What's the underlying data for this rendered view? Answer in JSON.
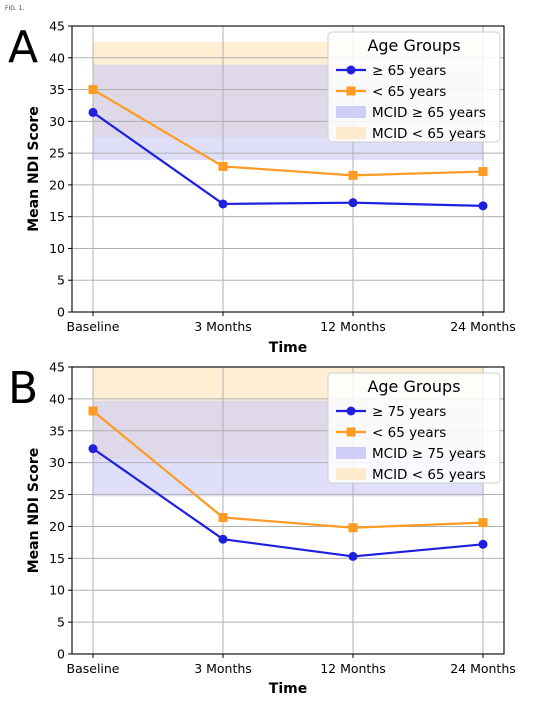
{
  "figure_label": "FIG. 1.",
  "colors": {
    "blue": "#1f1fe0",
    "orange": "#ff9a22",
    "mcid_blue": "#c9c9f7",
    "mcid_orange": "#fdebcc",
    "grid": "#b0b0b0"
  },
  "chart_data": [
    {
      "panel_label": "A",
      "type": "line",
      "categories": [
        "Baseline",
        "3 Months",
        "12 Months",
        "24 Months"
      ],
      "xlabel": "Time",
      "ylabel": "Mean NDI Score",
      "ylim": [
        0,
        45
      ],
      "yticks": [
        0,
        5,
        10,
        15,
        20,
        25,
        30,
        35,
        40,
        45
      ],
      "grid": true,
      "series": [
        {
          "name": "≥ 65 years",
          "values": [
            31.4,
            17.0,
            17.2,
            16.7
          ],
          "color": "#1f1fe0",
          "marker": "circle"
        },
        {
          "name": "< 65 years",
          "values": [
            35.0,
            22.9,
            21.5,
            22.1
          ],
          "color": "#ff9a22",
          "marker": "square"
        }
      ],
      "bands": [
        {
          "name": "MCID ≥ 65 years",
          "range": [
            23.9,
            38.9
          ],
          "color": "#c9c9f7"
        },
        {
          "name": "MCID < 65 years",
          "range": [
            27.5,
            42.5
          ],
          "color": "#fdebcc"
        }
      ],
      "legend": {
        "title": "Age Groups",
        "position": "upper-right"
      }
    },
    {
      "panel_label": "B",
      "type": "line",
      "categories": [
        "Baseline",
        "3 Months",
        "12 Months",
        "24 Months"
      ],
      "xlabel": "Time",
      "ylabel": "Mean NDI Score",
      "ylim": [
        0,
        45
      ],
      "yticks": [
        0,
        5,
        10,
        15,
        20,
        25,
        30,
        35,
        40,
        45
      ],
      "grid": true,
      "series": [
        {
          "name": "≥ 75 years",
          "values": [
            32.2,
            18.0,
            15.3,
            17.2
          ],
          "color": "#1f1fe0",
          "marker": "circle"
        },
        {
          "name": "< 65 years",
          "values": [
            38.1,
            21.4,
            19.8,
            20.6
          ],
          "color": "#ff9a22",
          "marker": "square"
        }
      ],
      "bands": [
        {
          "name": "MCID ≥ 75 years",
          "range": [
            24.7,
            39.7
          ],
          "color": "#c9c9f7"
        },
        {
          "name": "MCID < 65 years",
          "range": [
            30.6,
            45.0
          ],
          "color": "#fdebcc"
        }
      ],
      "legend": {
        "title": "Age Groups",
        "position": "upper-right"
      }
    }
  ]
}
